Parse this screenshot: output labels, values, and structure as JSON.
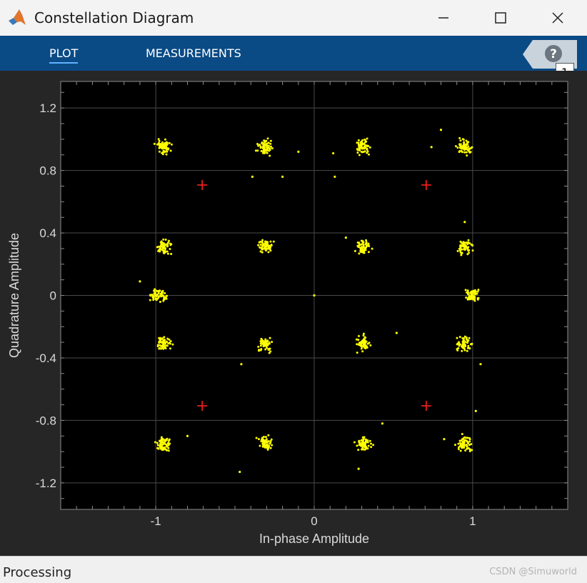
{
  "window": {
    "title": "Constellation Diagram",
    "icon": "matlab-logo-icon"
  },
  "toolstrip": {
    "tabs": [
      {
        "label": "PLOT",
        "active": true
      },
      {
        "label": "MEASUREMENTS",
        "active": false
      }
    ],
    "help_icon": "question-mark-icon",
    "badge": "1",
    "background": "#0a4a85"
  },
  "status": {
    "text": "Processing",
    "watermark": "CSDN @Simuworld"
  },
  "chart_data": {
    "type": "scatter",
    "xlabel": "In-phase Amplitude",
    "ylabel": "Quadrature Amplitude",
    "xlim": [
      -1.6,
      1.6
    ],
    "ylim": [
      -1.37,
      1.37
    ],
    "xticks": [
      -1,
      0,
      1
    ],
    "xtick_labels": [
      "-1",
      "0",
      "1"
    ],
    "yticks": [
      1.2,
      0.8,
      0.4,
      0,
      -0.4,
      -0.8,
      -1.2
    ],
    "ytick_labels": [
      "1.2",
      "0.8",
      "0.4",
      "0",
      "-0.4",
      "-0.8",
      "-1.2"
    ],
    "grid": true,
    "background": "#000000",
    "point_color": "#ffff00",
    "reference_color": "#ff2020",
    "series": [
      {
        "kind": "received-symbols",
        "clusters": [
          [
            -0.95,
            0.95
          ],
          [
            -0.31,
            0.95
          ],
          [
            0.31,
            0.95
          ],
          [
            0.95,
            0.95
          ],
          [
            -0.95,
            0.31
          ],
          [
            -0.31,
            0.31
          ],
          [
            0.31,
            0.31
          ],
          [
            0.95,
            0.31
          ],
          [
            -0.98,
            0.0
          ],
          [
            1.0,
            0.0
          ],
          [
            -0.95,
            -0.31
          ],
          [
            -0.31,
            -0.31
          ],
          [
            0.31,
            -0.31
          ],
          [
            0.95,
            -0.31
          ],
          [
            -0.95,
            -0.95
          ],
          [
            -0.31,
            -0.95
          ],
          [
            0.31,
            -0.95
          ],
          [
            0.95,
            -0.95
          ]
        ],
        "outliers": [
          [
            0.0,
            0.0
          ],
          [
            -0.2,
            0.76
          ],
          [
            -0.39,
            0.76
          ],
          [
            0.13,
            0.76
          ],
          [
            -0.1,
            0.92
          ],
          [
            0.12,
            0.91
          ],
          [
            0.74,
            0.95
          ],
          [
            0.8,
            1.06
          ],
          [
            0.52,
            -0.24
          ],
          [
            -0.46,
            -0.44
          ],
          [
            -0.47,
            -1.13
          ],
          [
            0.43,
            -0.82
          ],
          [
            0.28,
            -1.11
          ],
          [
            1.05,
            -0.44
          ],
          [
            1.02,
            -0.74
          ],
          [
            -1.1,
            0.09
          ],
          [
            0.95,
            0.47
          ],
          [
            0.2,
            0.37
          ],
          [
            0.82,
            -0.92
          ],
          [
            -0.8,
            -0.9
          ]
        ]
      },
      {
        "kind": "reference-constellation",
        "points": [
          [
            -0.707,
            0.707
          ],
          [
            0.707,
            0.707
          ],
          [
            -0.707,
            -0.707
          ],
          [
            0.707,
            -0.707
          ]
        ]
      }
    ]
  }
}
